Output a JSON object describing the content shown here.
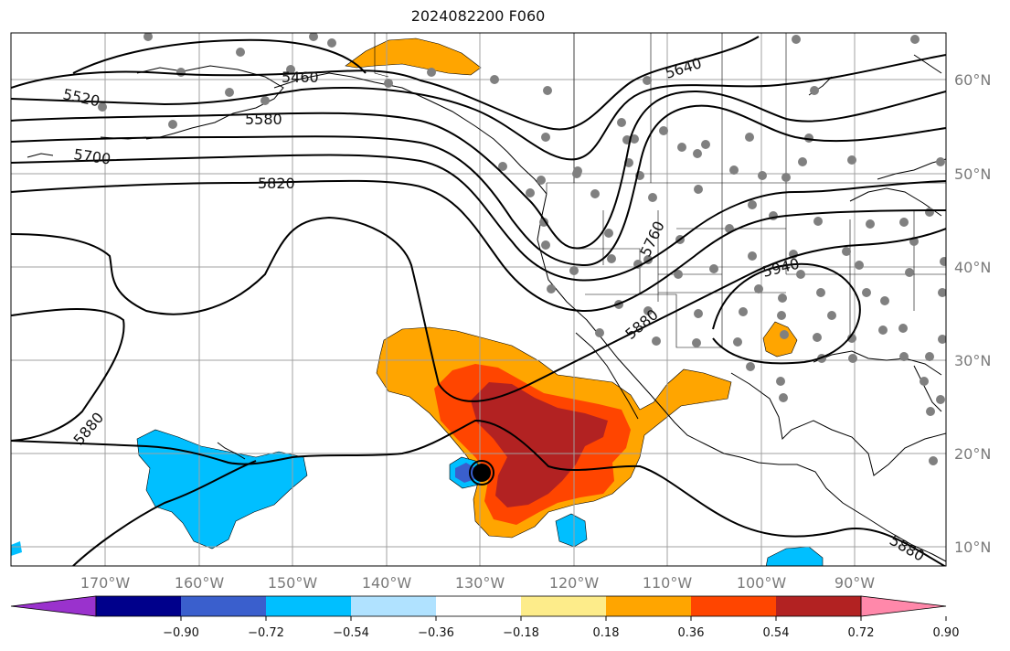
{
  "title": "2024082200 F060",
  "lon_labels": [
    "170°W",
    "160°W",
    "150°W",
    "140°W",
    "130°W",
    "120°W",
    "110°W",
    "100°W",
    "90°W"
  ],
  "lat_labels": [
    "60°N",
    "50°N",
    "40°N",
    "30°N",
    "20°N",
    "10°N"
  ],
  "colorbar": {
    "colors": [
      "#9a32cd",
      "#00008b",
      "#3a5fcd",
      "#00bfff",
      "#b0e2ff",
      "#ffffff",
      "#fdec8a",
      "#ffa500",
      "#ff4500",
      "#b22222",
      "#ff88aa"
    ],
    "labels": [
      "−0.90",
      "−0.72",
      "−0.54",
      "−0.36",
      "−0.18",
      "0.18",
      "0.36",
      "0.54",
      "0.72",
      "0.90"
    ]
  },
  "contour_labels": [
    {
      "text": "5520"
    },
    {
      "text": "5460"
    },
    {
      "text": "5580"
    },
    {
      "text": "5640"
    },
    {
      "text": "5700"
    },
    {
      "text": "5820"
    },
    {
      "text": "5760"
    },
    {
      "text": "5940"
    },
    {
      "text": "5880"
    },
    {
      "text": "5880"
    },
    {
      "text": "5880"
    }
  ]
}
